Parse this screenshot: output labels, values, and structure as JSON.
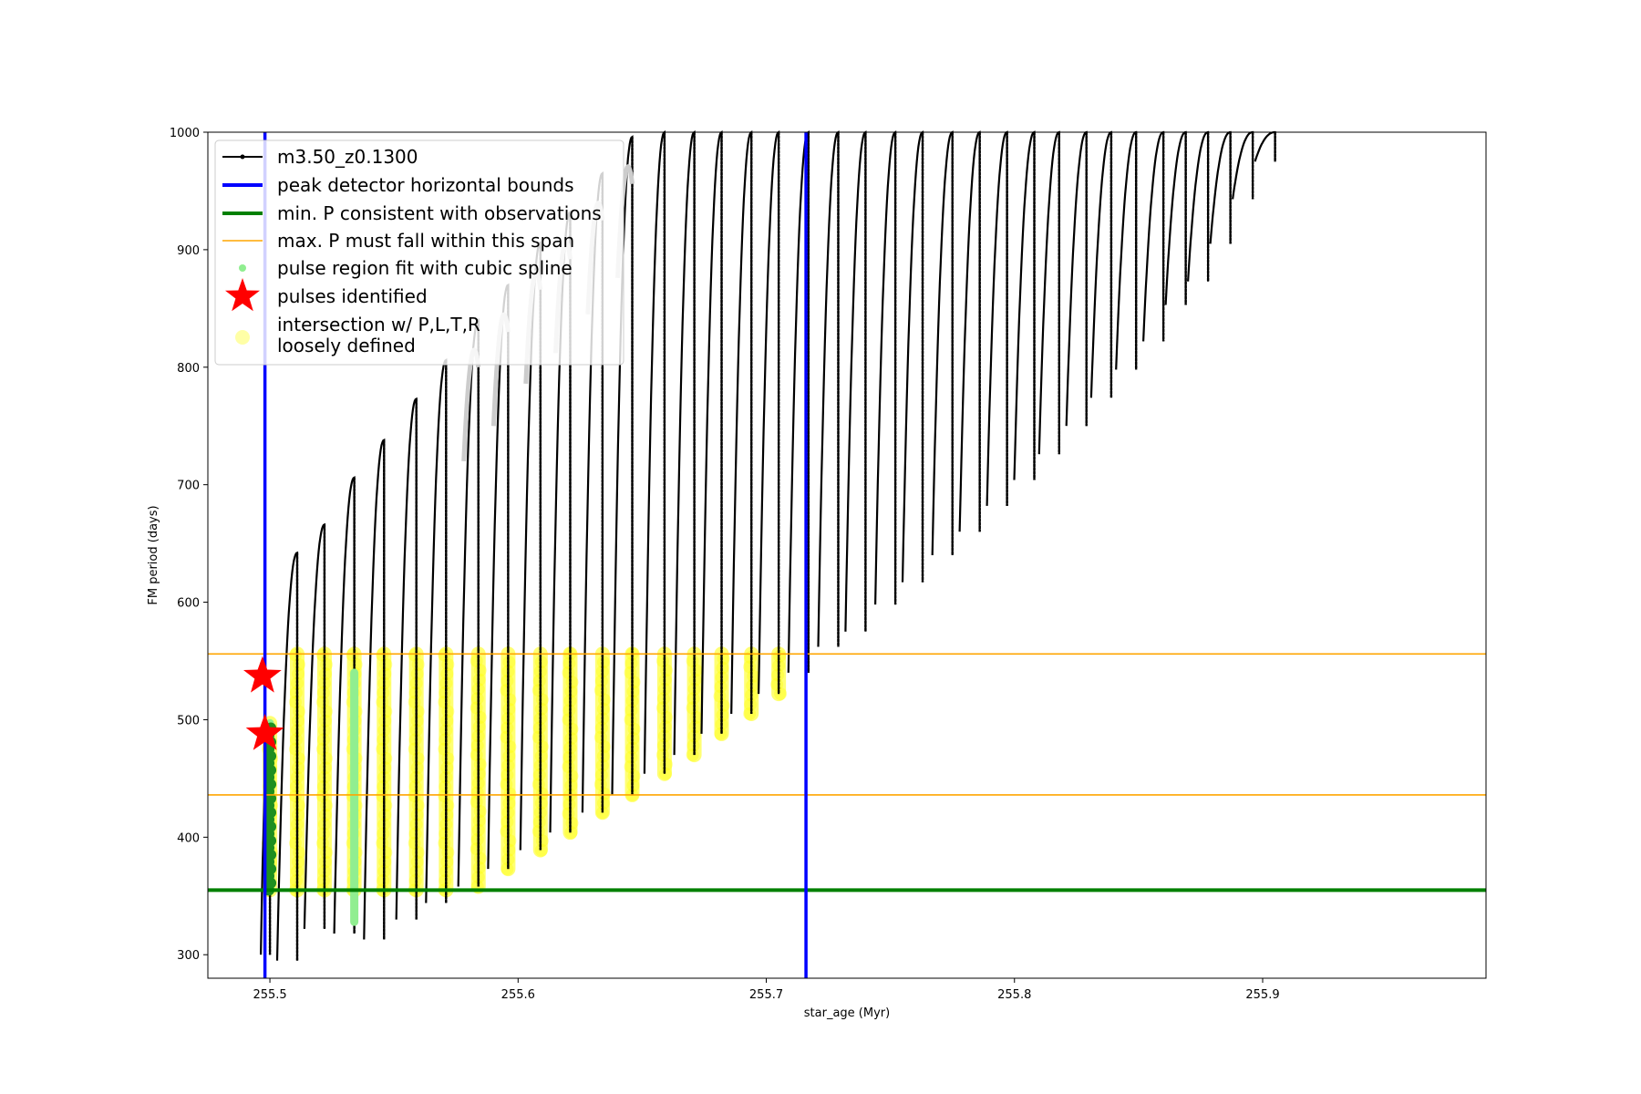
{
  "chart_data": {
    "type": "scatter",
    "title": "",
    "xlabel": "star_age (Myr)",
    "ylabel": "FM period (days)",
    "xlim": [
      255.475,
      255.99
    ],
    "ylim": [
      280,
      1000
    ],
    "xticks": [
      255.5,
      255.6,
      255.7,
      255.8,
      255.9
    ],
    "xtick_labels": [
      "255.5",
      "255.6",
      "255.7",
      "255.8",
      "255.9"
    ],
    "yticks": [
      300,
      400,
      500,
      600,
      700,
      800,
      900,
      1000
    ],
    "ytick_labels": [
      "300",
      "400",
      "500",
      "600",
      "700",
      "800",
      "900",
      "1000"
    ],
    "grid": false,
    "legend_position": "top-left",
    "legend": [
      {
        "key": "track",
        "label": "m3.50_z0.1300",
        "color": "#000000",
        "marker": "line-dot"
      },
      {
        "key": "peak",
        "label": "peak detector horizontal bounds",
        "color": "#0000ff",
        "marker": "line-thick"
      },
      {
        "key": "minp",
        "label": "min. P consistent with observations",
        "color": "#008000",
        "marker": "line-thick"
      },
      {
        "key": "maxp",
        "label": "max. P must fall within this span",
        "color": "#ffa500",
        "marker": "line"
      },
      {
        "key": "spline",
        "label": "pulse region fit with cubic spline",
        "color": "#90ee90",
        "marker": "dot"
      },
      {
        "key": "pulses",
        "label": "pulses identified",
        "color": "#ff0000",
        "marker": "star"
      },
      {
        "key": "intersect",
        "label": "intersection w/ P,L,T,R\nloosely defined",
        "color": "#ffff00",
        "marker": "circle"
      }
    ],
    "vertical_lines": [
      {
        "series": "peak",
        "x": 255.498,
        "color": "#0000ff"
      },
      {
        "series": "peak",
        "x": 255.716,
        "color": "#0000ff"
      }
    ],
    "horizontal_lines": [
      {
        "series": "minp",
        "y": 355,
        "color": "#008000"
      },
      {
        "series": "maxp",
        "y": 436,
        "color": "#ffa500"
      },
      {
        "series": "maxp",
        "y": 556,
        "color": "#ffa500"
      }
    ],
    "pulse_cycles": [
      {
        "x": 255.5,
        "min": 300,
        "max": 497
      },
      {
        "x": 255.511,
        "min": 295,
        "max": 642
      },
      {
        "x": 255.522,
        "min": 322,
        "max": 666
      },
      {
        "x": 255.534,
        "min": 318,
        "max": 706
      },
      {
        "x": 255.546,
        "min": 313,
        "max": 738
      },
      {
        "x": 255.559,
        "min": 330,
        "max": 773
      },
      {
        "x": 255.571,
        "min": 344,
        "max": 806
      },
      {
        "x": 255.584,
        "min": 358,
        "max": 840
      },
      {
        "x": 255.596,
        "min": 373,
        "max": 870
      },
      {
        "x": 255.609,
        "min": 389,
        "max": 906
      },
      {
        "x": 255.621,
        "min": 404,
        "max": 932
      },
      {
        "x": 255.634,
        "min": 421,
        "max": 965
      },
      {
        "x": 255.646,
        "min": 436,
        "max": 996
      },
      {
        "x": 255.659,
        "min": 454,
        "max": 1000
      },
      {
        "x": 255.671,
        "min": 470,
        "max": 1000
      },
      {
        "x": 255.682,
        "min": 488,
        "max": 1000
      },
      {
        "x": 255.694,
        "min": 505,
        "max": 1000
      },
      {
        "x": 255.705,
        "min": 522,
        "max": 1000
      },
      {
        "x": 255.717,
        "min": 540,
        "max": 1000
      },
      {
        "x": 255.729,
        "min": 562,
        "max": 1000
      },
      {
        "x": 255.74,
        "min": 575,
        "max": 1000
      },
      {
        "x": 255.752,
        "min": 598,
        "max": 1000
      },
      {
        "x": 255.763,
        "min": 617,
        "max": 1000
      },
      {
        "x": 255.775,
        "min": 640,
        "max": 1000
      },
      {
        "x": 255.786,
        "min": 660,
        "max": 1000
      },
      {
        "x": 255.797,
        "min": 682,
        "max": 1000
      },
      {
        "x": 255.808,
        "min": 704,
        "max": 1000
      },
      {
        "x": 255.818,
        "min": 726,
        "max": 1000
      },
      {
        "x": 255.829,
        "min": 750,
        "max": 1000
      },
      {
        "x": 255.839,
        "min": 774,
        "max": 1000
      },
      {
        "x": 255.849,
        "min": 798,
        "max": 1000
      },
      {
        "x": 255.86,
        "min": 822,
        "max": 1000
      },
      {
        "x": 255.869,
        "min": 853,
        "max": 1000
      },
      {
        "x": 255.878,
        "min": 873,
        "max": 1000
      },
      {
        "x": 255.887,
        "min": 905,
        "max": 1000
      },
      {
        "x": 255.896,
        "min": 943,
        "max": 1000
      },
      {
        "x": 255.905,
        "min": 975,
        "max": 1000
      }
    ],
    "pulses_identified": [
      {
        "x": 255.497,
        "y": 537
      },
      {
        "x": 255.498,
        "y": 488
      }
    ],
    "spline_regions": [
      {
        "x": 255.5,
        "ymin": 355,
        "ymax": 497
      },
      {
        "x": 255.534,
        "ymin": 328,
        "ymax": 540
      }
    ]
  }
}
